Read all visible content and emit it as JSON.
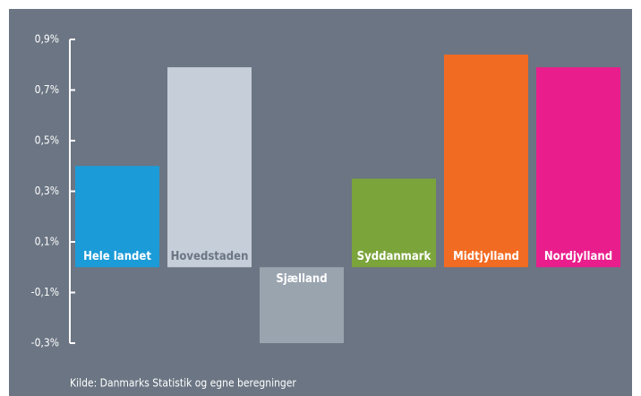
{
  "chart_data": {
    "type": "bar",
    "categories": [
      "Hele landet",
      "Hovedstaden",
      "Sjælland",
      "Syddanmark",
      "Midtjylland",
      "Nordjylland"
    ],
    "values": [
      0.4,
      0.79,
      -0.3,
      0.35,
      0.84,
      0.79
    ],
    "colors": [
      "#1b9bd7",
      "#c6cfd9",
      "#99a4af",
      "#7ba43b",
      "#f26b22",
      "#e91e8c"
    ],
    "label_colors": [
      "#ffffff",
      "#6b7583",
      "#ffffff",
      "#ffffff",
      "#ffffff",
      "#ffffff"
    ],
    "ylim": [
      -0.3,
      0.9
    ],
    "yticks": [
      {
        "value": -0.3,
        "label": "-0,3%"
      },
      {
        "value": -0.1,
        "label": "-0,1%"
      },
      {
        "value": 0.1,
        "label": "0,1%"
      },
      {
        "value": 0.3,
        "label": "0,3%"
      },
      {
        "value": 0.5,
        "label": "0,5%"
      },
      {
        "value": 0.7,
        "label": "0,7%"
      },
      {
        "value": 0.9,
        "label": "0,9%"
      }
    ],
    "source": "Kilde: Danmarks Statistik og egne beregninger"
  }
}
